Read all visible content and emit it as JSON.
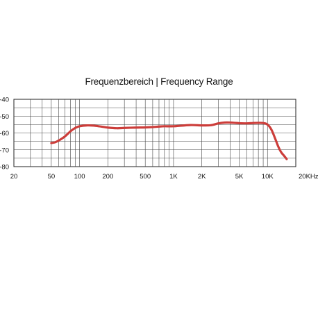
{
  "chart_data": {
    "type": "line",
    "title": "Frequenzbereich | Frequency Range",
    "xlabel": "",
    "ylabel": "",
    "x_scale": "log",
    "xlim": [
      20,
      20000
    ],
    "ylim": [
      -80,
      -40
    ],
    "grid": true,
    "legend": "none",
    "x_tick_labels": [
      {
        "value": 20,
        "label": "20"
      },
      {
        "value": 50,
        "label": "50"
      },
      {
        "value": 100,
        "label": "100"
      },
      {
        "value": 200,
        "label": "200"
      },
      {
        "value": 500,
        "label": "500"
      },
      {
        "value": 1000,
        "label": "1K"
      },
      {
        "value": 2000,
        "label": "2K"
      },
      {
        "value": 5000,
        "label": "5K"
      },
      {
        "value": 10000,
        "label": "10K"
      },
      {
        "value": 20000,
        "label": "20KHz"
      }
    ],
    "y_tick_labels": [
      {
        "value": -40,
        "label": "-40"
      },
      {
        "value": -50,
        "label": "-50"
      },
      {
        "value": -60,
        "label": "-60"
      },
      {
        "value": -70,
        "label": "-70"
      },
      {
        "value": -80,
        "label": "-80"
      }
    ],
    "series": [
      {
        "color": "#cc3d3a",
        "x": [
          50,
          55,
          60,
          70,
          80,
          90,
          100,
          120,
          150,
          200,
          250,
          300,
          400,
          500,
          600,
          700,
          800,
          1000,
          1500,
          2000,
          2500,
          3000,
          3500,
          4000,
          4500,
          5000,
          6000,
          7000,
          8000,
          9000,
          10000,
          11000,
          12000,
          13000,
          14000,
          15000,
          16000
        ],
        "y": [
          -66,
          -65.5,
          -64.5,
          -62,
          -59,
          -57,
          -56,
          -55.5,
          -55.8,
          -56.8,
          -57.2,
          -57,
          -56.8,
          -56.7,
          -56.5,
          -56.2,
          -56,
          -56,
          -55.3,
          -55.5,
          -55.4,
          -54.3,
          -53.8,
          -53.8,
          -54,
          -54.2,
          -54.3,
          -54.1,
          -54,
          -54.1,
          -55,
          -58,
          -63,
          -68,
          -71.5,
          -73.5,
          -75.5
        ]
      }
    ]
  }
}
